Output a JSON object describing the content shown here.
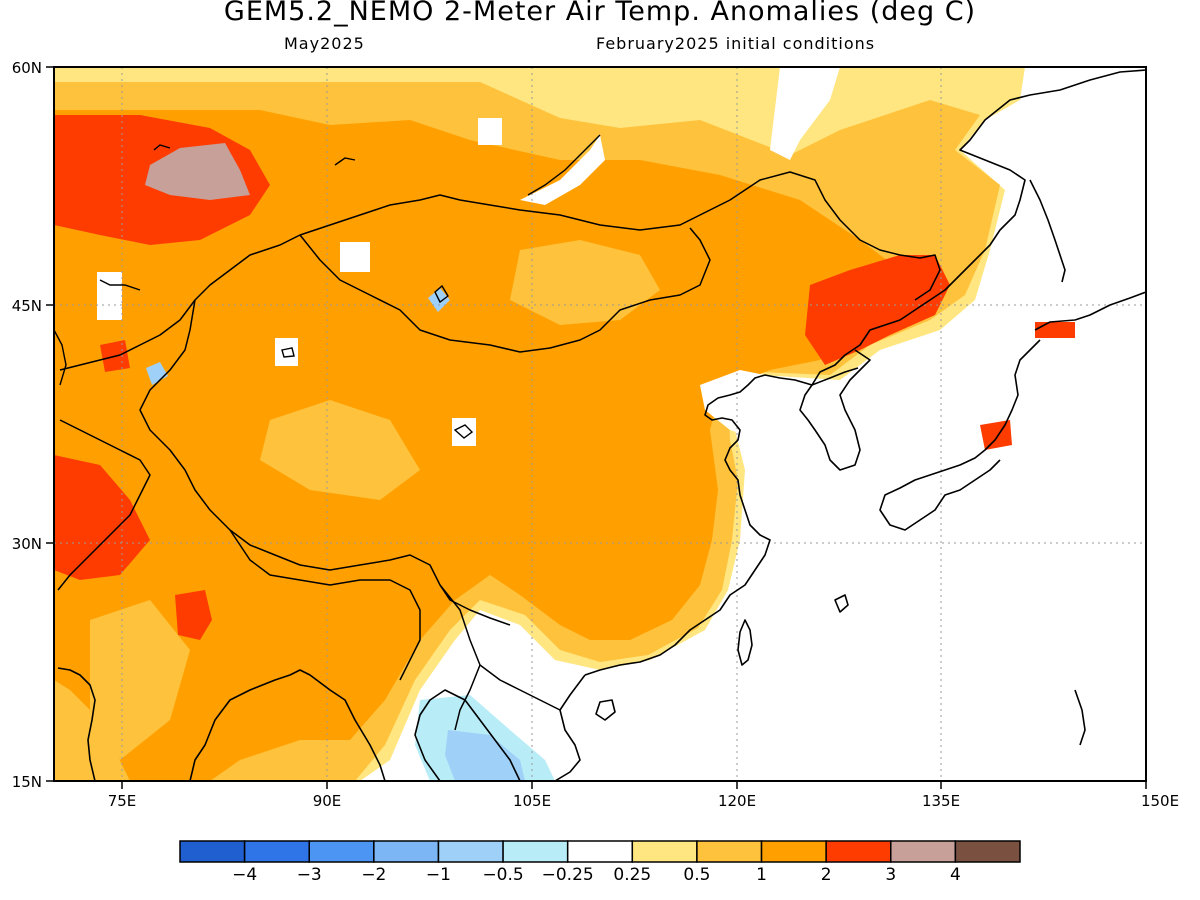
{
  "title": "GEM5.2_NEMO 2-Meter Air Temp. Anomalies (deg C)",
  "subtitle_left": "May2025",
  "subtitle_right": "February2025 initial conditions",
  "map": {
    "lon_range": [
      70,
      150
    ],
    "lat_range": [
      15,
      60
    ],
    "lon_ticks": [
      "75E",
      "90E",
      "105E",
      "120E",
      "135E",
      "150E"
    ],
    "lat_ticks": [
      "60N",
      "45N",
      "30N",
      "15N"
    ]
  },
  "colorbar": {
    "colors": [
      "#1f5fd0",
      "#2f75e8",
      "#4c95f2",
      "#7cb6f5",
      "#9fd0f7",
      "#b8ecf7",
      "#ffffff",
      "#ffe680",
      "#ffc23c",
      "#ffa000",
      "#ff3c00",
      "#c8a09a",
      "#7a5040"
    ],
    "labels": [
      "−4",
      "−3",
      "−2",
      "−1",
      "−0.5",
      "−0.25",
      "0.25",
      "0.5",
      "1",
      "2",
      "3",
      "4"
    ]
  },
  "anomaly_regions": [
    {
      "name": "core-warm-1to2",
      "level": "1 to 2",
      "color": "#ffa000"
    },
    {
      "name": "warm-2to3",
      "level": "2 to 3",
      "color": "#ff3c00"
    },
    {
      "name": "warm-3to4",
      "level": "3 to 4",
      "color": "#c8a09a"
    },
    {
      "name": "warm-0.5to1",
      "level": "0.5 to 1",
      "color": "#ffc23c"
    },
    {
      "name": "warm-0.25to0.5",
      "level": "0.25 to 0.5",
      "color": "#ffe680"
    },
    {
      "name": "cool-indochina",
      "level": "-0.5 to -0.25",
      "color": "#b8ecf7"
    },
    {
      "name": "cool-indochina-core",
      "level": "-1 to -0.5",
      "color": "#9fd0f7"
    }
  ]
}
